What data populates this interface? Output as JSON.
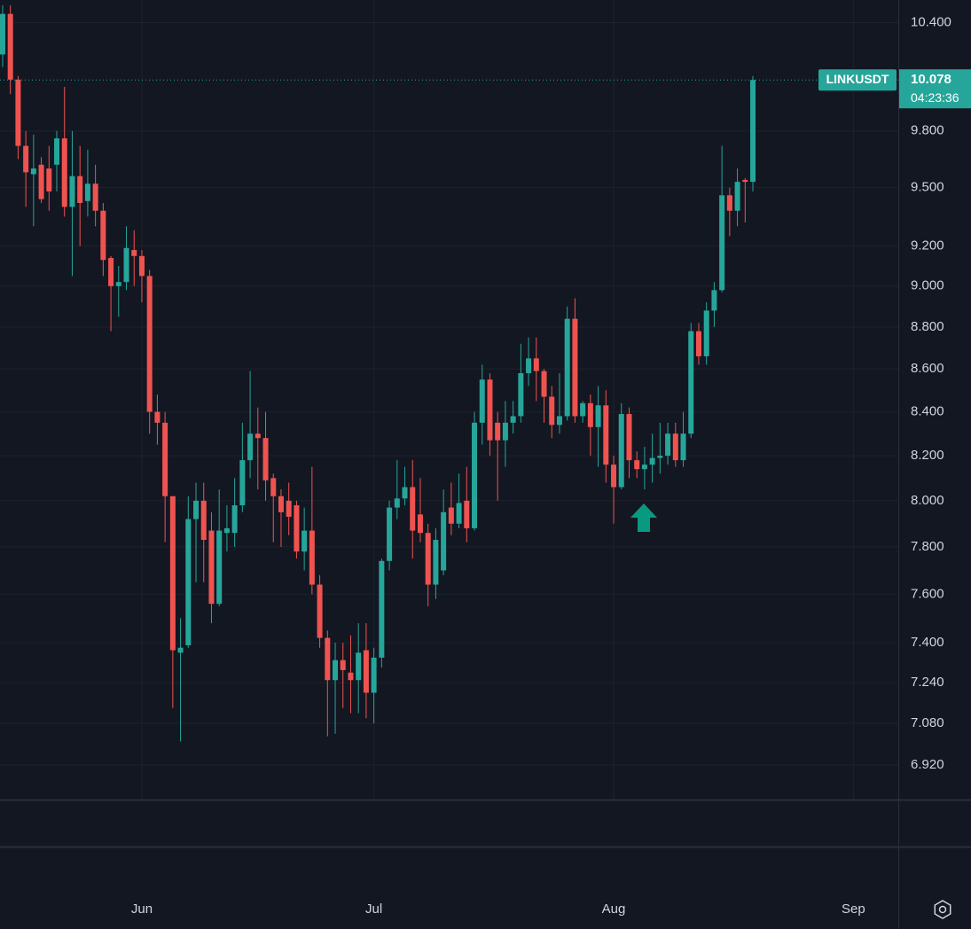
{
  "chart_data": {
    "type": "candlestick",
    "symbol": "LINKUSDT",
    "countdown": "04:23:36",
    "up_color": "#26a69a",
    "down_color": "#ef5350",
    "log_scale": true,
    "grid": true,
    "ylim": [
      6.79,
      10.53
    ],
    "yticks": [
      {
        "value": 10.4,
        "label": "10.400"
      },
      {
        "value": 9.8,
        "label": "9.800"
      },
      {
        "value": 9.5,
        "label": "9.500"
      },
      {
        "value": 9.2,
        "label": "9.200"
      },
      {
        "value": 9.0,
        "label": "9.000"
      },
      {
        "value": 8.8,
        "label": "8.800"
      },
      {
        "value": 8.6,
        "label": "8.600"
      },
      {
        "value": 8.4,
        "label": "8.400"
      },
      {
        "value": 8.2,
        "label": "8.200"
      },
      {
        "value": 8.0,
        "label": "8.000"
      },
      {
        "value": 7.8,
        "label": "7.800"
      },
      {
        "value": 7.6,
        "label": "7.600"
      },
      {
        "value": 7.4,
        "label": "7.400"
      },
      {
        "value": 7.24,
        "label": "7.240"
      },
      {
        "value": 7.08,
        "label": "7.080"
      },
      {
        "value": 6.92,
        "label": "6.920"
      }
    ],
    "xlim": [
      -0.34,
      115.8
    ],
    "xticks": [
      {
        "value": 18,
        "label": "Jun"
      },
      {
        "value": 48,
        "label": "Jul"
      },
      {
        "value": 79,
        "label": "Aug"
      },
      {
        "value": 110,
        "label": "Sep"
      }
    ],
    "open": [
      10.22,
      10.45,
      10.08,
      9.72,
      9.57,
      9.62,
      9.6,
      9.62,
      9.76,
      9.4,
      9.56,
      9.43,
      9.52,
      9.38,
      9.14,
      9.0,
      9.02,
      9.18,
      9.15,
      9.05,
      8.4,
      8.35,
      8.02,
      7.36,
      7.39,
      7.92,
      8.0,
      7.87,
      7.56,
      7.86,
      7.86,
      7.98,
      8.18,
      8.3,
      8.28,
      8.1,
      8.02,
      8.0,
      7.98,
      7.78,
      7.87,
      7.64,
      7.42,
      7.25,
      7.33,
      7.28,
      7.25,
      7.37,
      7.2,
      7.34,
      7.74,
      7.97,
      8.01,
      8.06,
      7.94,
      7.86,
      7.64,
      7.7,
      7.97,
      7.9,
      8.0,
      7.88,
      8.35,
      8.55,
      8.35,
      8.27,
      8.35,
      8.38,
      8.58,
      8.65,
      8.59,
      8.47,
      8.34,
      8.38,
      8.84,
      8.38,
      8.44,
      8.33,
      8.43,
      8.16,
      8.06,
      8.39,
      8.18,
      8.14,
      8.16,
      8.19,
      8.2,
      8.3,
      8.18,
      8.3,
      8.78,
      8.66,
      8.88,
      8.98,
      9.46,
      9.38,
      9.54,
      9.53
    ],
    "high": [
      10.5,
      10.5,
      10.1,
      9.8,
      9.78,
      9.66,
      9.72,
      9.8,
      10.04,
      9.8,
      9.72,
      9.7,
      9.62,
      9.42,
      9.15,
      9.1,
      9.3,
      9.28,
      9.18,
      9.08,
      8.48,
      8.4,
      8.02,
      7.5,
      8.02,
      8.08,
      8.08,
      7.95,
      8.05,
      7.98,
      8.1,
      8.35,
      8.59,
      8.42,
      8.4,
      8.12,
      8.05,
      8.08,
      8.0,
      7.97,
      8.15,
      7.68,
      7.45,
      7.4,
      7.4,
      7.43,
      7.48,
      7.48,
      7.38,
      7.75,
      8.0,
      8.18,
      8.15,
      8.18,
      8.1,
      7.9,
      7.88,
      8.05,
      8.08,
      8.12,
      8.15,
      8.4,
      8.62,
      8.58,
      8.4,
      8.45,
      8.45,
      8.72,
      8.75,
      8.75,
      8.6,
      8.52,
      8.58,
      8.9,
      8.94,
      8.45,
      8.48,
      8.52,
      8.5,
      8.2,
      8.44,
      8.42,
      8.22,
      8.24,
      8.3,
      8.35,
      8.35,
      8.35,
      8.4,
      8.82,
      8.82,
      8.92,
      9.02,
      9.72,
      9.5,
      9.6,
      9.55,
      10.1
    ],
    "low": [
      10.15,
      10.0,
      9.65,
      9.4,
      9.3,
      9.42,
      9.38,
      9.48,
      9.35,
      9.05,
      9.2,
      9.35,
      9.3,
      9.05,
      8.78,
      8.85,
      8.98,
      9.0,
      8.92,
      8.3,
      8.25,
      7.82,
      7.14,
      7.01,
      7.38,
      7.65,
      7.65,
      7.48,
      7.55,
      7.78,
      7.8,
      7.95,
      8.1,
      8.05,
      8.0,
      7.82,
      7.8,
      7.85,
      7.75,
      7.7,
      7.6,
      7.38,
      7.03,
      7.04,
      7.14,
      7.12,
      7.12,
      7.1,
      7.08,
      7.3,
      7.7,
      7.92,
      7.98,
      7.75,
      7.82,
      7.55,
      7.58,
      7.68,
      7.85,
      7.88,
      7.82,
      7.87,
      8.25,
      8.2,
      8.0,
      8.15,
      8.3,
      8.35,
      8.52,
      8.45,
      8.35,
      8.28,
      8.3,
      8.36,
      8.35,
      8.35,
      8.2,
      8.15,
      8.08,
      7.9,
      8.05,
      8.1,
      8.1,
      8.05,
      8.08,
      8.12,
      8.16,
      8.15,
      8.15,
      8.28,
      8.62,
      8.62,
      8.8,
      8.97,
      9.25,
      9.3,
      9.32,
      9.48
    ],
    "close": [
      10.45,
      10.08,
      9.72,
      9.58,
      9.6,
      9.44,
      9.48,
      9.76,
      9.4,
      9.56,
      9.42,
      9.52,
      9.38,
      9.13,
      9.0,
      9.02,
      9.19,
      9.15,
      9.05,
      8.4,
      8.35,
      8.02,
      7.37,
      7.38,
      7.92,
      8.0,
      7.83,
      7.56,
      7.87,
      7.88,
      7.98,
      8.18,
      8.3,
      8.28,
      8.09,
      8.02,
      7.95,
      7.93,
      7.78,
      7.87,
      7.64,
      7.42,
      7.25,
      7.33,
      7.29,
      7.25,
      7.36,
      7.2,
      7.34,
      7.74,
      7.97,
      8.01,
      8.06,
      7.87,
      7.86,
      7.64,
      7.83,
      7.95,
      7.9,
      7.99,
      7.88,
      8.35,
      8.55,
      8.27,
      8.27,
      8.35,
      8.38,
      8.58,
      8.65,
      8.59,
      8.47,
      8.34,
      8.38,
      8.84,
      8.38,
      8.44,
      8.33,
      8.43,
      8.16,
      8.06,
      8.39,
      8.18,
      8.14,
      8.16,
      8.19,
      8.2,
      8.3,
      8.18,
      8.3,
      8.78,
      8.66,
      8.88,
      8.98,
      9.46,
      9.38,
      9.53,
      9.53,
      10.078
    ]
  }
}
